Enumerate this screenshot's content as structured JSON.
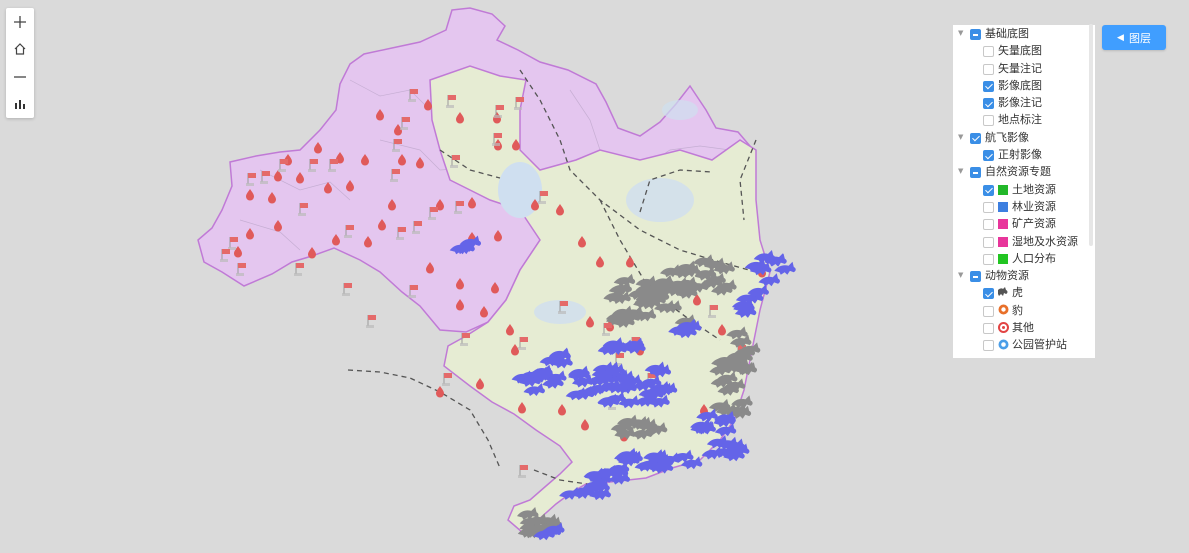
{
  "toolbar": {
    "zoom_in_icon": "plus-icon",
    "home_icon": "home-icon",
    "zoom_out_icon": "minus-icon",
    "stats_icon": "bar-chart-icon"
  },
  "layer_button": {
    "icon": "caret-left-icon",
    "label": "图层"
  },
  "layer_tree": [
    {
      "label": "基础底图",
      "state": "partial",
      "children": [
        {
          "label": "矢量底图",
          "checked": false
        },
        {
          "label": "矢量注记",
          "checked": false
        },
        {
          "label": "影像底图",
          "checked": true
        },
        {
          "label": "影像注记",
          "checked": true
        },
        {
          "label": "地点标注",
          "checked": false
        }
      ]
    },
    {
      "label": "航飞影像",
      "state": "checked",
      "children": [
        {
          "label": "正射影像",
          "checked": true
        }
      ]
    },
    {
      "label": "自然资源专题",
      "state": "partial",
      "children": [
        {
          "label": "土地资源",
          "checked": true,
          "swatch": "#22b82a"
        },
        {
          "label": "林业资源",
          "checked": false,
          "swatch": "#3d7fe0"
        },
        {
          "label": "矿产资源",
          "checked": false,
          "swatch": "#e8359b"
        },
        {
          "label": "湿地及水资源",
          "checked": false,
          "swatch": "#e8359b"
        },
        {
          "label": "人口分布",
          "checked": false,
          "swatch": "#22c522"
        }
      ]
    },
    {
      "label": "动物资源",
      "state": "partial",
      "children": [
        {
          "label": "虎",
          "checked": true,
          "icon": "tiger-icon"
        },
        {
          "label": "豹",
          "checked": false,
          "icon": "leopard-icon"
        },
        {
          "label": "其他",
          "checked": false,
          "icon": "other-animal-icon"
        },
        {
          "label": "公园管护站",
          "checked": false,
          "icon": "station-icon"
        }
      ]
    }
  ],
  "colors": {
    "background": "#dadada",
    "region_pink": "#e4c6ef",
    "region_green": "#e6ecd3",
    "water": "#cfdff0",
    "boundary": "#c07ad6",
    "marker_red": "#e06060",
    "tiger_purple": "#6464e8",
    "tiger_gray": "#8a8a8a",
    "accent": "#409eff"
  }
}
